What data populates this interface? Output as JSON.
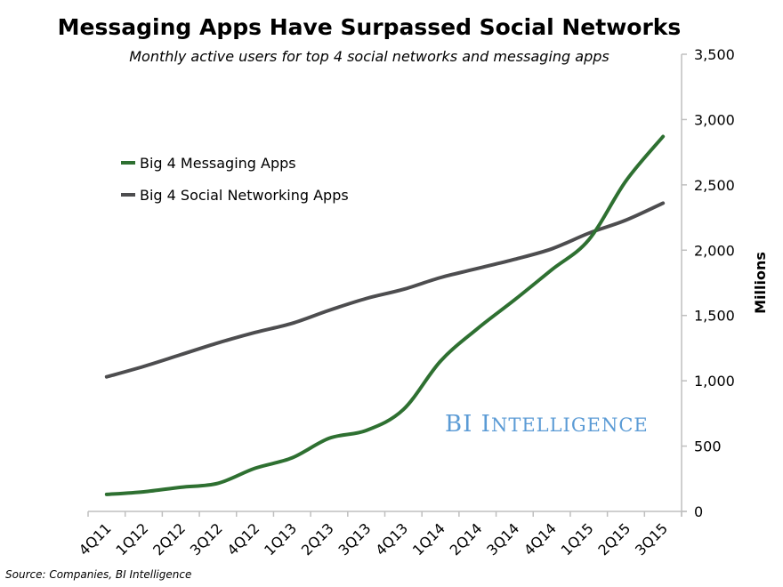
{
  "chart_data": {
    "type": "line",
    "title": "Messaging Apps Have Surpassed Social Networks",
    "subtitle": "Monthly active users for top 4 social networks and messaging apps",
    "xlabel": "",
    "ylabel": "Millions",
    "categories": [
      "4Q11",
      "1Q12",
      "2Q12",
      "3Q12",
      "4Q12",
      "1Q13",
      "2Q13",
      "3Q13",
      "4Q13",
      "1Q14",
      "2Q14",
      "3Q14",
      "4Q14",
      "1Q15",
      "2Q15",
      "3Q15"
    ],
    "ylim": [
      0,
      3500
    ],
    "yticks": [
      "0",
      "500",
      "1,000",
      "1,500",
      "2,000",
      "2,500",
      "3,000",
      "3,500"
    ],
    "ytick_values": [
      0,
      500,
      1000,
      1500,
      2000,
      2500,
      3000,
      3500
    ],
    "y_axis_side": "right",
    "grid": false,
    "legend_placement": "top-left",
    "series": [
      {
        "name": "Big 4 Messaging Apps",
        "color": "#2e7031",
        "values": [
          130,
          150,
          185,
          215,
          330,
          410,
          560,
          620,
          780,
          1150,
          1400,
          1620,
          1850,
          2080,
          2530,
          2870
        ]
      },
      {
        "name": "Big 4 Social Networking Apps",
        "color": "#4d4d4f",
        "values": [
          1030,
          1110,
          1200,
          1290,
          1370,
          1440,
          1540,
          1630,
          1700,
          1790,
          1860,
          1930,
          2010,
          2130,
          2230,
          2360
        ]
      }
    ],
    "source": "Source: Companies, BI Intelligence",
    "watermark": "BI Intelligence"
  }
}
